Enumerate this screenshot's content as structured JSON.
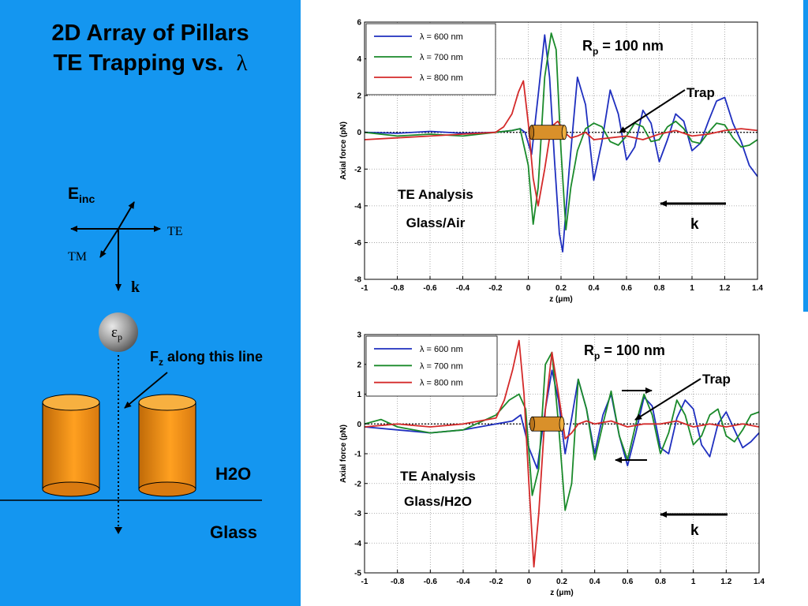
{
  "colors": {
    "panel_blue": "#1496f0",
    "pillar_orange": "#f59a1e",
    "series_blue": "#1f2fbf",
    "series_green": "#1a8a2a",
    "series_red": "#d42a2a"
  },
  "left": {
    "title_line1": "2D Array of Pillars",
    "title_line2": "TE Trapping vs.",
    "title_symbol": "λ",
    "einc_main": "E",
    "einc_sub": "inc",
    "te_label": "TE",
    "tm_label": "TM",
    "k_label": "k",
    "particle_symbol": "ε",
    "particle_sub": "p",
    "fz_main": "F",
    "fz_sub": "z",
    "fz_rest": " along this line",
    "medium_top": "H2O",
    "medium_bottom": "Glass"
  },
  "chart_data": [
    {
      "type": "line",
      "xlabel": "z (μm)",
      "ylabel": "Axial force (pN)",
      "xlim": [
        -1,
        1.4
      ],
      "ylim": [
        -8,
        6
      ],
      "xticks": [
        "-1",
        "-0.8",
        "-0.6",
        "-0.4",
        "-0.2",
        "0",
        "0.2",
        "0.4",
        "0.6",
        "0.8",
        "1",
        "1.2",
        "1.4"
      ],
      "yticks": [
        "6",
        "4",
        "2",
        "0",
        "-2",
        "-4",
        "-6",
        "-8"
      ],
      "grid": true,
      "legend_position": "top-left",
      "annotations": {
        "rp_main": "R",
        "rp_sub": "p",
        "rp_rest": " = 100 nm",
        "trap": "Trap",
        "analysis_line1": "TE Analysis",
        "analysis_line2": "Glass/Air",
        "k": "k"
      },
      "series": [
        {
          "name": "λ =  600 nm",
          "color": "#1f2fbf",
          "x": [
            -1.0,
            -0.8,
            -0.6,
            -0.4,
            -0.2,
            -0.1,
            -0.05,
            -0.02,
            0.02,
            0.06,
            0.1,
            0.13,
            0.16,
            0.19,
            0.21,
            0.25,
            0.3,
            0.35,
            0.4,
            0.45,
            0.5,
            0.55,
            0.6,
            0.65,
            0.7,
            0.75,
            0.8,
            0.85,
            0.9,
            0.95,
            1.0,
            1.05,
            1.1,
            1.15,
            1.2,
            1.25,
            1.3,
            1.35,
            1.4
          ],
          "y": [
            0.0,
            -0.05,
            0.05,
            -0.05,
            0.0,
            0.1,
            0.2,
            0.0,
            -1.2,
            2.0,
            5.3,
            3.0,
            -1.5,
            -5.5,
            -6.5,
            -2.0,
            3.0,
            1.5,
            -2.6,
            -0.5,
            2.3,
            1.0,
            -1.5,
            -0.8,
            1.2,
            0.5,
            -1.6,
            -0.4,
            1.0,
            0.6,
            -1.0,
            -0.6,
            0.6,
            1.7,
            1.9,
            0.5,
            -0.5,
            -1.8,
            -2.4
          ]
        },
        {
          "name": "λ = 700 nm",
          "color": "#1a8a2a",
          "x": [
            -1.0,
            -0.8,
            -0.6,
            -0.4,
            -0.2,
            -0.1,
            -0.05,
            -0.02,
            0.0,
            0.03,
            0.06,
            0.1,
            0.14,
            0.17,
            0.2,
            0.23,
            0.26,
            0.3,
            0.35,
            0.4,
            0.45,
            0.5,
            0.55,
            0.6,
            0.65,
            0.7,
            0.75,
            0.8,
            0.85,
            0.9,
            0.95,
            1.0,
            1.05,
            1.1,
            1.15,
            1.2,
            1.25,
            1.3,
            1.35,
            1.4
          ],
          "y": [
            0.0,
            -0.2,
            -0.1,
            -0.2,
            0.0,
            0.1,
            0.2,
            -1.0,
            -1.8,
            -5.0,
            -3.0,
            3.0,
            5.4,
            4.5,
            -1.0,
            -5.3,
            -3.0,
            -1.0,
            0.2,
            0.5,
            0.3,
            -0.5,
            -0.7,
            -0.2,
            0.5,
            0.3,
            -0.5,
            -0.4,
            0.3,
            0.6,
            0.2,
            -0.5,
            -0.6,
            0.0,
            0.5,
            0.4,
            -0.3,
            -0.8,
            -0.7,
            -0.4
          ]
        },
        {
          "name": "λ = 800 nm",
          "color": "#d42a2a",
          "x": [
            -1.0,
            -0.8,
            -0.6,
            -0.4,
            -0.2,
            -0.15,
            -0.1,
            -0.06,
            -0.03,
            0.0,
            0.03,
            0.06,
            0.1,
            0.14,
            0.18,
            0.22,
            0.26,
            0.3,
            0.35,
            0.4,
            0.5,
            0.6,
            0.7,
            0.8,
            0.9,
            1.0,
            1.1,
            1.2,
            1.3,
            1.4
          ],
          "y": [
            -0.4,
            -0.3,
            -0.2,
            -0.1,
            0.0,
            0.3,
            1.0,
            2.2,
            2.8,
            0.5,
            -2.5,
            -4.0,
            -2.0,
            0.3,
            0.6,
            0.0,
            -0.3,
            -0.2,
            0.0,
            -0.4,
            -0.3,
            -0.2,
            -0.4,
            -0.1,
            0.1,
            -0.2,
            -0.1,
            0.1,
            0.2,
            0.1
          ]
        }
      ]
    },
    {
      "type": "line",
      "xlabel": "z (μm)",
      "ylabel": "Axial force (pN)",
      "xlim": [
        -1,
        1.4
      ],
      "ylim": [
        -5,
        3
      ],
      "xticks": [
        "-1",
        "-0.8",
        "-0.6",
        "-0.4",
        "-0.2",
        "0",
        "0.2",
        "0.4",
        "0.6",
        "0.8",
        "1",
        "1.2",
        "1.4"
      ],
      "yticks": [
        "3",
        "2",
        "1",
        "0",
        "-1",
        "-2",
        "-3",
        "-4",
        "-5"
      ],
      "grid": true,
      "legend_position": "top-left",
      "annotations": {
        "rp_main": "R",
        "rp_sub": "p",
        "rp_rest": " = 100 nm",
        "trap": "Trap",
        "analysis_line1": "TE Analysis",
        "analysis_line2": "Glass/H2O",
        "k": "k"
      },
      "series": [
        {
          "name": "λ =  600 nm",
          "color": "#1f2fbf",
          "x": [
            -1.0,
            -0.8,
            -0.6,
            -0.4,
            -0.2,
            -0.1,
            -0.05,
            0.0,
            0.05,
            0.1,
            0.14,
            0.18,
            0.22,
            0.26,
            0.3,
            0.35,
            0.4,
            0.45,
            0.5,
            0.55,
            0.6,
            0.65,
            0.7,
            0.75,
            0.8,
            0.85,
            0.9,
            0.95,
            1.0,
            1.05,
            1.1,
            1.15,
            1.2,
            1.25,
            1.3,
            1.35,
            1.4
          ],
          "y": [
            -0.1,
            -0.2,
            -0.3,
            -0.2,
            0.0,
            0.1,
            0.3,
            -0.8,
            -1.5,
            0.5,
            1.8,
            0.8,
            -1.0,
            0.2,
            1.5,
            0.5,
            -1.0,
            0.3,
            1.0,
            -0.4,
            -1.4,
            -0.3,
            0.9,
            0.6,
            -0.8,
            -1.0,
            0.2,
            0.8,
            0.5,
            -0.7,
            -1.1,
            0.0,
            0.4,
            -0.2,
            -0.8,
            -0.6,
            -0.3
          ]
        },
        {
          "name": "λ = 700 nm",
          "color": "#1a8a2a",
          "x": [
            -1.0,
            -0.9,
            -0.8,
            -0.6,
            -0.4,
            -0.2,
            -0.12,
            -0.06,
            -0.02,
            0.02,
            0.06,
            0.1,
            0.14,
            0.18,
            0.22,
            0.26,
            0.3,
            0.35,
            0.4,
            0.45,
            0.5,
            0.55,
            0.6,
            0.65,
            0.7,
            0.75,
            0.8,
            0.85,
            0.9,
            0.95,
            1.0,
            1.05,
            1.1,
            1.15,
            1.2,
            1.25,
            1.3,
            1.35,
            1.4
          ],
          "y": [
            0.0,
            0.15,
            -0.1,
            -0.3,
            -0.2,
            0.3,
            0.8,
            1.0,
            0.5,
            -2.4,
            -1.5,
            2.0,
            2.4,
            0.0,
            -2.9,
            -2.0,
            1.5,
            0.5,
            -1.2,
            0.0,
            1.1,
            -0.4,
            -1.2,
            0.0,
            1.0,
            0.3,
            -1.0,
            -0.3,
            0.8,
            0.3,
            -0.7,
            -0.4,
            0.3,
            0.5,
            -0.4,
            -0.6,
            -0.2,
            0.3,
            0.4
          ]
        },
        {
          "name": "λ = 800 nm",
          "color": "#d42a2a",
          "x": [
            -1.0,
            -0.8,
            -0.6,
            -0.4,
            -0.2,
            -0.15,
            -0.1,
            -0.06,
            -0.03,
            0.0,
            0.03,
            0.06,
            0.1,
            0.14,
            0.18,
            0.22,
            0.26,
            0.3,
            0.35,
            0.4,
            0.5,
            0.6,
            0.7,
            0.8,
            0.9,
            1.0,
            1.1,
            1.2,
            1.3,
            1.4
          ],
          "y": [
            -0.1,
            0.0,
            -0.1,
            0.0,
            0.2,
            0.8,
            1.8,
            2.8,
            1.0,
            -2.0,
            -4.8,
            -3.0,
            0.5,
            2.4,
            1.0,
            -0.5,
            -0.3,
            0.0,
            0.1,
            0.0,
            0.1,
            -0.1,
            0.0,
            0.0,
            0.1,
            -0.1,
            0.0,
            -0.1,
            0.0,
            -0.1
          ]
        }
      ]
    }
  ]
}
